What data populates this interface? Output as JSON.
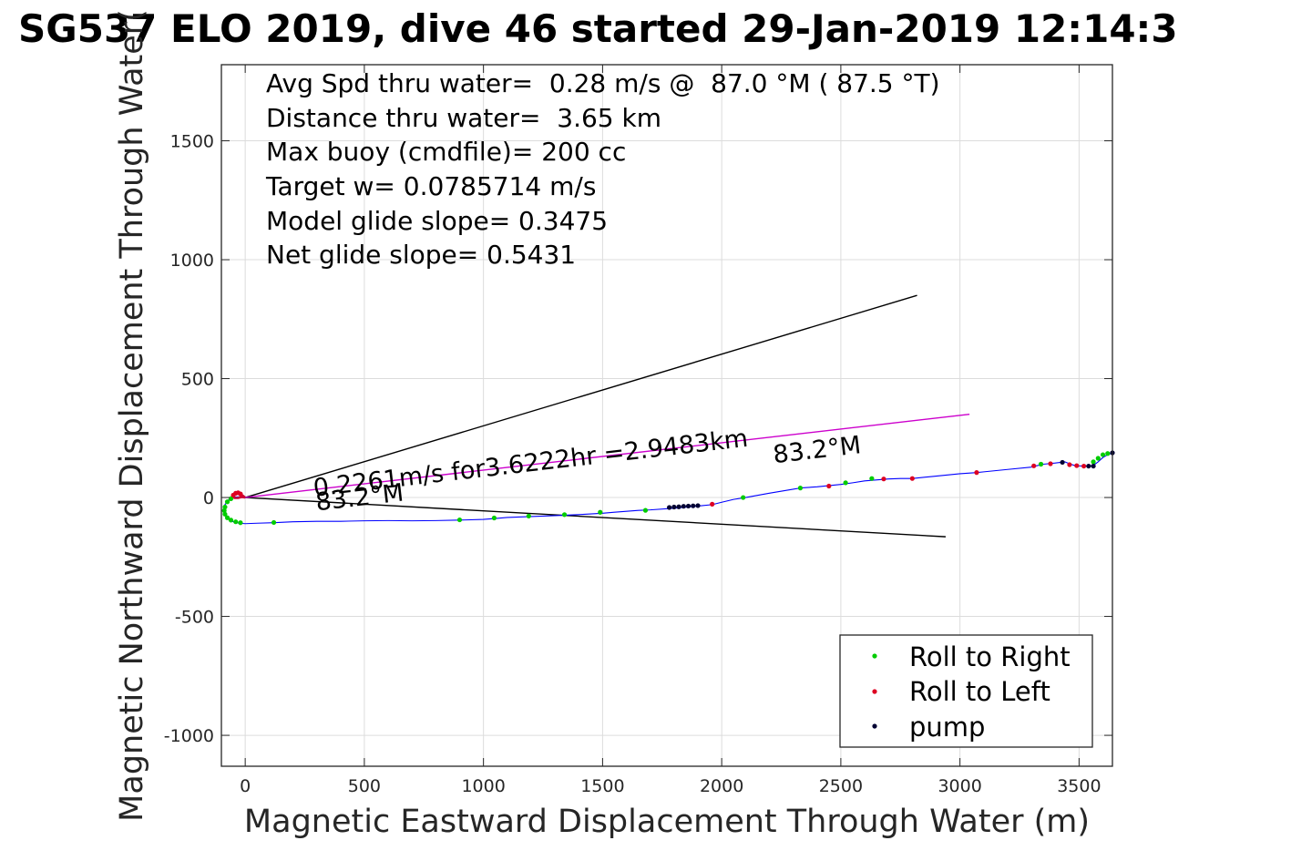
{
  "chart_data": {
    "type": "line",
    "title": "SG537 ELO 2019, dive 46 started 29-Jan-2019 12:14:3",
    "xlabel": "Magnetic Eastward Displacement Through Water (m)",
    "ylabel": "Magnetic Northward Displacement Through Water(",
    "xlim": [
      -100,
      3640
    ],
    "ylim": [
      -1130,
      1820
    ],
    "xticks": [
      "0",
      "500",
      "1000",
      "1500",
      "2000",
      "2500",
      "3000",
      "3500"
    ],
    "xtick_values": [
      0,
      500,
      1000,
      1500,
      2000,
      2500,
      3000,
      3500
    ],
    "yticks": [
      "-1000",
      "-500",
      "0",
      "500",
      "1000",
      "1500"
    ],
    "ytick_values": [
      -1000,
      -500,
      0,
      500,
      1000,
      1500
    ],
    "grid": true,
    "legend_position": "bottom-right",
    "info_lines": [
      "Avg Spd thru water=  0.28 m/s @  87.0 °M ( 87.5 °T)",
      "Distance thru water=  3.65 km",
      "Max buoy (cmdfile)= 200 cc",
      "Target w= 0.0785714 m/s",
      "Model glide slope= 0.3475",
      "Net glide slope= 0.5431"
    ],
    "annotations": [
      {
        "text": "0.2261m/s for3.6222hr =2.9483km",
        "x": 290,
        "y": 5,
        "angle": 6.6
      },
      {
        "text": "83.2°M",
        "x": 2220,
        "y": 145,
        "angle": 6.6
      },
      {
        "text": "83.2°M",
        "x": 300,
        "y": -55,
        "angle": 6.6
      }
    ],
    "reference_lines": [
      {
        "name": "upper-envelope-line",
        "color": "#000000",
        "x": [
          0,
          2820
        ],
        "y": [
          0,
          850
        ]
      },
      {
        "name": "lower-envelope-line",
        "color": "#000000",
        "x": [
          0,
          2940
        ],
        "y": [
          0,
          -165
        ]
      },
      {
        "name": "mean-heading-line",
        "color": "#cc00cc",
        "x": [
          0,
          3040
        ],
        "y": [
          0,
          350
        ]
      }
    ],
    "track": {
      "color": "#0000ff",
      "x": [
        0,
        -20,
        -45,
        -70,
        -85,
        -90,
        -85,
        -70,
        -50,
        -25,
        0,
        50,
        120,
        200,
        300,
        400,
        500,
        600,
        700,
        800,
        900,
        1000,
        1050,
        1100,
        1200,
        1300,
        1400,
        1500,
        1550,
        1600,
        1650,
        1700,
        1800,
        1900,
        1960,
        2000,
        2050,
        2100,
        2200,
        2300,
        2330,
        2400,
        2500,
        2550,
        2600,
        2700,
        2750,
        2800,
        2900,
        3000,
        3070,
        3100,
        3200,
        3300,
        3320,
        3350,
        3400,
        3440,
        3460,
        3480,
        3500,
        3540,
        3560,
        3580,
        3600,
        3620,
        3640
      ],
      "y": [
        0,
        3,
        2,
        -10,
        -30,
        -55,
        -75,
        -92,
        -102,
        -108,
        -110,
        -108,
        -106,
        -102,
        -100,
        -100,
        -98,
        -97,
        -98,
        -97,
        -95,
        -92,
        -88,
        -84,
        -80,
        -76,
        -72,
        -66,
        -62,
        -58,
        -54,
        -52,
        -45,
        -36,
        -30,
        -20,
        -8,
        0,
        18,
        35,
        40,
        45,
        55,
        62,
        70,
        78,
        80,
        80,
        90,
        100,
        105,
        108,
        118,
        128,
        133,
        140,
        145,
        150,
        142,
        135,
        133,
        132,
        135,
        150,
        168,
        180,
        188
      ]
    },
    "start_loop": {
      "color": "#cc0033",
      "x": [
        0,
        -10,
        -25,
        -40,
        -50,
        -55,
        -45,
        -30,
        -15,
        0
      ],
      "y": [
        0,
        8,
        18,
        20,
        14,
        4,
        -2,
        -2,
        2,
        0
      ]
    },
    "series": [
      {
        "name": "Roll to Right",
        "color": "#00cc00",
        "x": [
          -60,
          -75,
          -85,
          -88,
          -85,
          -75,
          -60,
          -40,
          -20,
          120,
          900,
          1045,
          1190,
          1340,
          1490,
          1680,
          2090,
          2330,
          2520,
          2630,
          3340,
          3560,
          3580,
          3600,
          3620
        ],
        "y": [
          -5,
          -18,
          -40,
          -55,
          -70,
          -85,
          -95,
          -102,
          -106,
          -105,
          -94,
          -86,
          -78,
          -72,
          -62,
          -54,
          0,
          40,
          62,
          80,
          140,
          150,
          165,
          180,
          185
        ]
      },
      {
        "name": "Roll to Left",
        "color": "#dd0022",
        "x": [
          -50,
          -40,
          -30,
          -20,
          1960,
          2450,
          2680,
          2800,
          3070,
          3310,
          3380,
          3460,
          3490,
          3520
        ],
        "y": [
          10,
          18,
          20,
          15,
          -28,
          48,
          78,
          80,
          105,
          133,
          142,
          138,
          134,
          132
        ]
      },
      {
        "name": "pump",
        "color": "#000033",
        "x": [
          1780,
          1800,
          1820,
          1840,
          1860,
          1880,
          1900,
          3430,
          3540,
          3560,
          3640
        ],
        "y": [
          -42,
          -40,
          -39,
          -37,
          -36,
          -35,
          -34,
          148,
          132,
          132,
          188
        ]
      }
    ]
  }
}
